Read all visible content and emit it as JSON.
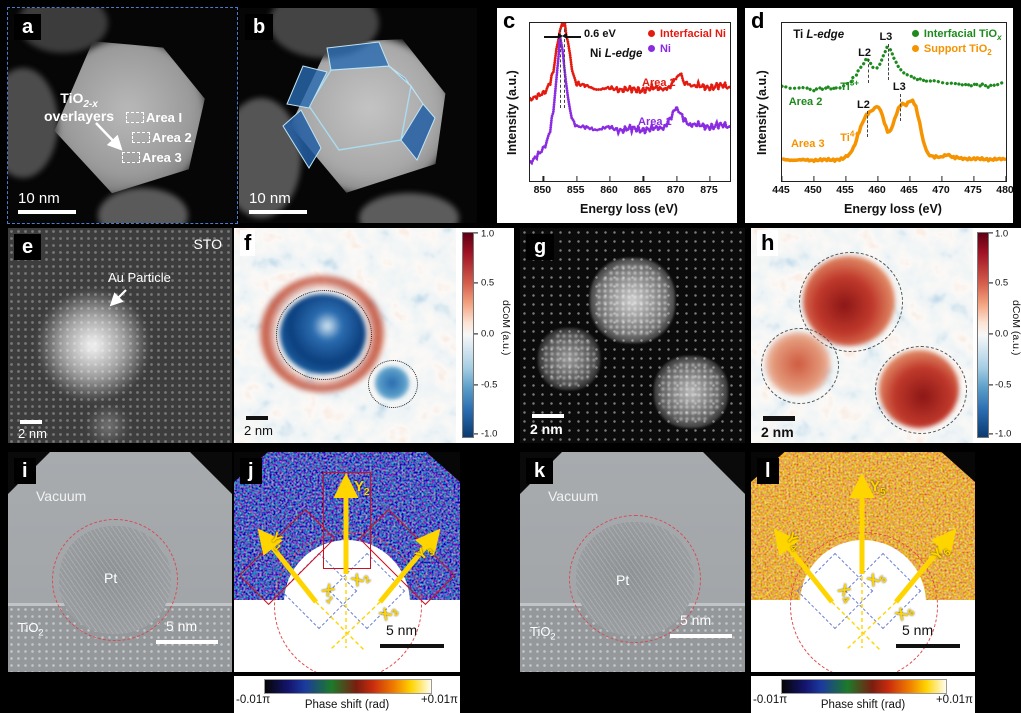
{
  "figure": {
    "panels": {
      "a": {
        "letter": "a",
        "overlayer_label": {
          "base": "TiO",
          "sub": "2-x",
          "line2": "overlayers"
        },
        "areas": [
          "Area I",
          "Area 2",
          "Area 3"
        ],
        "scale_bar": "10 nm"
      },
      "b": {
        "letter": "b",
        "scale_bar": "10 nm"
      },
      "c": {
        "letter": "c"
      },
      "d": {
        "letter": "d"
      },
      "e": {
        "letter": "e",
        "substrate_label": "STO",
        "particle_label": "Au Particle",
        "scale_bar": "2 nm"
      },
      "f": {
        "letter": "f",
        "scale_bar": "2 nm",
        "colorbar": {
          "ticks": [
            "1.0",
            "0.5",
            "0.0",
            "-0.5",
            "-1.0"
          ],
          "label": "dCoM (a.u.)"
        }
      },
      "g": {
        "letter": "g",
        "scale_bar": "2 nm"
      },
      "h": {
        "letter": "h",
        "scale_bar": "2 nm",
        "colorbar": {
          "ticks": [
            "1.0",
            "0.5",
            "0.0",
            "-0.5",
            "-1.0"
          ],
          "label": "dCoM (a.u.)"
        }
      },
      "i": {
        "letter": "i",
        "vacuum_label": "Vacuum",
        "particle_label": "Pt",
        "support_label": {
          "base": "TiO",
          "sub": "2"
        },
        "scale_bar": "5 nm"
      },
      "j": {
        "letter": "j",
        "arrows": [
          {
            "base": "Y",
            "sub": "1"
          },
          {
            "base": "Y",
            "sub": "2"
          },
          {
            "base": "Y",
            "sub": "3"
          }
        ],
        "bases": [
          {
            "base": "X",
            "sub": "1"
          },
          {
            "base": "X",
            "sub": "2"
          },
          {
            "base": "X",
            "sub": "3"
          }
        ],
        "scale_bar": "5 nm",
        "colorbar": {
          "min": "-0.01π",
          "max": "+0.01π",
          "label": "Phase shift (rad)"
        }
      },
      "k": {
        "letter": "k",
        "vacuum_label": "Vacuum",
        "particle_label": "Pt",
        "support_label": {
          "base": "TiO",
          "sub": "2"
        },
        "scale_bar": "5 nm"
      },
      "l": {
        "letter": "l",
        "arrows": [
          {
            "base": "Y",
            "sub": "4"
          },
          {
            "base": "Y",
            "sub": "5"
          },
          {
            "base": "Y",
            "sub": "6"
          }
        ],
        "bases": [
          {
            "base": "X",
            "sub": "4"
          },
          {
            "base": "X",
            "sub": "5"
          },
          {
            "base": "X",
            "sub": "6"
          }
        ],
        "scale_bar": "5 nm",
        "colorbar": {
          "min": "-0.01π",
          "max": "+0.01π",
          "label": "Phase shift (rad)"
        }
      }
    }
  },
  "chart_data": [
    {
      "panel": "c",
      "type": "line",
      "xlabel": "Energy loss (eV)",
      "ylabel": "Intensity (a.u.)",
      "xlim": [
        848,
        878
      ],
      "ylim": [
        0,
        1
      ],
      "x_ticks": [
        850,
        855,
        860,
        865,
        870,
        875
      ],
      "grid": false,
      "legend_position": "top-right",
      "edge_label": {
        "prefix": "Ni ",
        "italic": "L-edge"
      },
      "peak_shift_label": "0.6 eV",
      "peak_positions_eV": [
        852.5,
        853.1
      ],
      "legend": [
        {
          "label": "Interfacial Ni",
          "color": "#e41a10"
        },
        {
          "label": "Ni",
          "color": "#8a2be2"
        }
      ],
      "series": [
        {
          "name": "Interfacial Ni",
          "area_label": "Area 2",
          "color": "#e41a10",
          "marker": "dots",
          "dot_size": 2.8,
          "dot_gap": 2.2,
          "jitter": 0.013,
          "points": [
            [
              848,
              0.52
            ],
            [
              849,
              0.53
            ],
            [
              850,
              0.55
            ],
            [
              850.8,
              0.6
            ],
            [
              851.5,
              0.7
            ],
            [
              852.2,
              0.88
            ],
            [
              852.8,
              0.99
            ],
            [
              853.2,
              1.0
            ],
            [
              853.7,
              0.88
            ],
            [
              854.3,
              0.7
            ],
            [
              855,
              0.62
            ],
            [
              856,
              0.6
            ],
            [
              857.5,
              0.59
            ],
            [
              859,
              0.58
            ],
            [
              861,
              0.585
            ],
            [
              863,
              0.575
            ],
            [
              865,
              0.58
            ],
            [
              867,
              0.585
            ],
            [
              868.5,
              0.59
            ],
            [
              869.6,
              0.64
            ],
            [
              870.4,
              0.69
            ],
            [
              871.2,
              0.63
            ],
            [
              872.5,
              0.6
            ],
            [
              874,
              0.595
            ],
            [
              876,
              0.6
            ],
            [
              878,
              0.595
            ]
          ]
        },
        {
          "name": "Ni",
          "area_label": "Area 1",
          "color": "#8a2be2",
          "marker": "dots",
          "dot_size": 2.8,
          "dot_gap": 2.2,
          "jitter": 0.013,
          "points": [
            [
              848,
              0.12
            ],
            [
              849,
              0.15
            ],
            [
              850,
              0.2
            ],
            [
              850.8,
              0.28
            ],
            [
              851.5,
              0.45
            ],
            [
              852.1,
              0.72
            ],
            [
              852.5,
              0.9
            ],
            [
              852.9,
              0.84
            ],
            [
              853.4,
              0.62
            ],
            [
              854,
              0.44
            ],
            [
              854.8,
              0.36
            ],
            [
              856,
              0.335
            ],
            [
              858,
              0.33
            ],
            [
              860,
              0.335
            ],
            [
              862,
              0.325
            ],
            [
              864,
              0.33
            ],
            [
              866,
              0.325
            ],
            [
              868,
              0.34
            ],
            [
              869.2,
              0.4
            ],
            [
              870,
              0.46
            ],
            [
              870.8,
              0.4
            ],
            [
              872,
              0.36
            ],
            [
              874,
              0.345
            ],
            [
              876,
              0.35
            ],
            [
              878,
              0.345
            ]
          ]
        }
      ]
    },
    {
      "panel": "d",
      "type": "line",
      "xlabel": "Energy loss (eV)",
      "ylabel": "Intensity (a.u.)",
      "xlim": [
        445,
        480
      ],
      "ylim": [
        0,
        1
      ],
      "x_ticks": [
        445,
        450,
        455,
        460,
        465,
        470,
        475,
        480
      ],
      "grid": false,
      "legend_position": "top-right",
      "edge_label": {
        "prefix": "Ti ",
        "italic": "L-edge"
      },
      "legend": [
        {
          "label": {
            "base": "Interfacial TiO",
            "sub": "x"
          },
          "color": "#1d8a1d"
        },
        {
          "label": {
            "base": "Support TiO",
            "sub": "2"
          },
          "color": "#f59300"
        }
      ],
      "series": [
        {
          "name": "Interfacial TiOx",
          "area_label": "Area 2",
          "oxidation_label": {
            "base": "Ti",
            "sup": "3+"
          },
          "peak_labels": [
            "L2",
            "L3"
          ],
          "peak_positions_eV": [
            458.4,
            461.5
          ],
          "color": "#1d8a1d",
          "marker": "dots",
          "dot_size": 3.2,
          "dot_gap": 4.5,
          "jitter": 0.006,
          "points": [
            [
              445,
              0.6
            ],
            [
              446.5,
              0.59
            ],
            [
              448,
              0.585
            ],
            [
              450,
              0.582
            ],
            [
              452,
              0.585
            ],
            [
              453.5,
              0.59
            ],
            [
              454.8,
              0.605
            ],
            [
              455.8,
              0.63
            ],
            [
              456.6,
              0.67
            ],
            [
              457.4,
              0.72
            ],
            [
              458,
              0.76
            ],
            [
              458.4,
              0.775
            ],
            [
              458.9,
              0.745
            ],
            [
              459.5,
              0.715
            ],
            [
              460.1,
              0.725
            ],
            [
              460.7,
              0.775
            ],
            [
              461.2,
              0.825
            ],
            [
              461.6,
              0.85
            ],
            [
              462.1,
              0.825
            ],
            [
              462.7,
              0.765
            ],
            [
              463.4,
              0.71
            ],
            [
              464.2,
              0.675
            ],
            [
              465.2,
              0.655
            ],
            [
              466.5,
              0.645
            ],
            [
              468,
              0.635
            ],
            [
              470,
              0.625
            ],
            [
              472,
              0.615
            ],
            [
              474,
              0.61
            ],
            [
              476,
              0.605
            ],
            [
              478,
              0.605
            ],
            [
              479.3,
              0.615
            ],
            [
              480,
              0.625
            ]
          ]
        },
        {
          "name": "Support TiO2",
          "area_label": "Area 3",
          "oxidation_label": {
            "base": "Ti",
            "sup": "4+"
          },
          "peak_labels": [
            "L2",
            "L3"
          ],
          "peak_positions_eV": [
            458.3,
            463.5
          ],
          "color": "#f59300",
          "marker": "line",
          "line_width": 3.5,
          "jitter": 0.004,
          "points": [
            [
              445,
              0.135
            ],
            [
              447,
              0.133
            ],
            [
              449,
              0.132
            ],
            [
              451,
              0.133
            ],
            [
              453,
              0.134
            ],
            [
              454.5,
              0.14
            ],
            [
              455.5,
              0.165
            ],
            [
              456.4,
              0.23
            ],
            [
              457.3,
              0.345
            ],
            [
              458,
              0.405
            ],
            [
              458.4,
              0.425
            ],
            [
              459.2,
              0.455
            ],
            [
              459.8,
              0.475
            ],
            [
              460.4,
              0.45
            ],
            [
              461,
              0.37
            ],
            [
              461.5,
              0.31
            ],
            [
              462,
              0.315
            ],
            [
              462.6,
              0.39
            ],
            [
              463.2,
              0.465
            ],
            [
              463.8,
              0.495
            ],
            [
              464.4,
              0.48
            ],
            [
              464.9,
              0.505
            ],
            [
              465.4,
              0.51
            ],
            [
              465.9,
              0.475
            ],
            [
              466.5,
              0.37
            ],
            [
              467.1,
              0.245
            ],
            [
              467.8,
              0.175
            ],
            [
              468.6,
              0.155
            ],
            [
              469.5,
              0.15
            ],
            [
              470.4,
              0.16
            ],
            [
              471.1,
              0.165
            ],
            [
              471.8,
              0.15
            ],
            [
              473,
              0.143
            ],
            [
              475,
              0.14
            ],
            [
              477,
              0.138
            ],
            [
              480,
              0.137
            ]
          ]
        }
      ]
    }
  ]
}
